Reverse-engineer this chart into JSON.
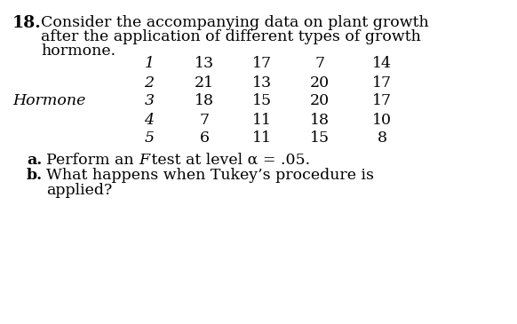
{
  "problem_number": "18.",
  "title_line1": "Consider the accompanying data on plant growth",
  "title_line2": "after the application of different types of growth",
  "title_line3": "hormone.",
  "hormone_label": "Hormone",
  "row_numbers": [
    "1",
    "2",
    "3",
    "4",
    "5"
  ],
  "table_data": [
    [
      13,
      17,
      7,
      14
    ],
    [
      21,
      13,
      20,
      17
    ],
    [
      18,
      15,
      20,
      17
    ],
    [
      7,
      11,
      18,
      10
    ],
    [
      6,
      11,
      15,
      8
    ]
  ],
  "bg_color": "#ffffff",
  "text_color": "#000000",
  "font_size": 12.5
}
